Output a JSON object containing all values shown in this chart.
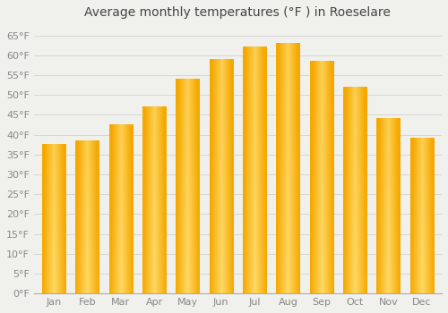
{
  "title": "Average monthly temperatures (°F ) in Roeselare",
  "months": [
    "Jan",
    "Feb",
    "Mar",
    "Apr",
    "May",
    "Jun",
    "Jul",
    "Aug",
    "Sep",
    "Oct",
    "Nov",
    "Dec"
  ],
  "values": [
    37.5,
    38.5,
    42.5,
    47.0,
    54.0,
    59.0,
    62.0,
    63.0,
    58.5,
    52.0,
    44.0,
    39.0
  ],
  "bar_color_dark": "#F5A800",
  "bar_color_light": "#FFD966",
  "bar_color_mid": "#FFBE00",
  "background_color": "#F0F0EC",
  "grid_color": "#CCCCCC",
  "ylim": [
    0,
    68
  ],
  "yticks": [
    0,
    5,
    10,
    15,
    20,
    25,
    30,
    35,
    40,
    45,
    50,
    55,
    60,
    65
  ],
  "title_fontsize": 10,
  "tick_fontsize": 8,
  "title_color": "#444444",
  "tick_color": "#888888",
  "bar_width": 0.7
}
